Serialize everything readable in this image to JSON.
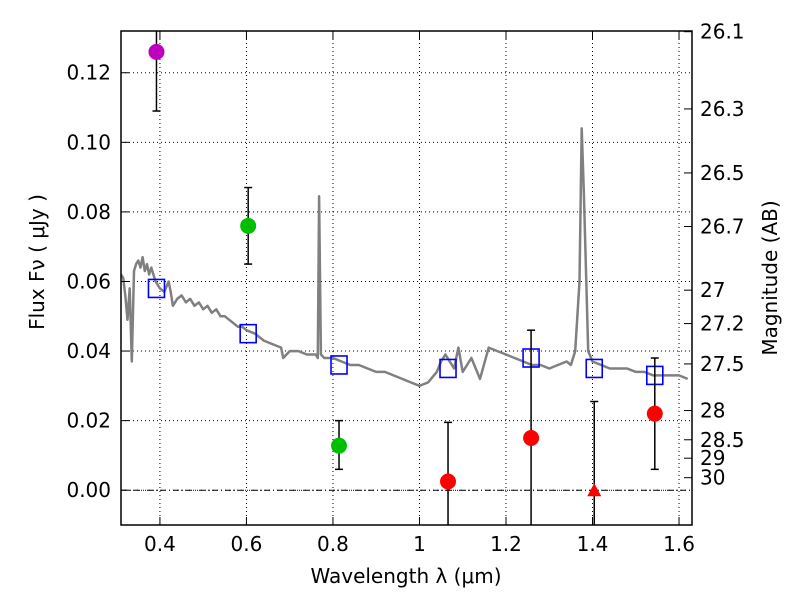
{
  "chart_data": {
    "type": "scatter",
    "title": "",
    "xlabel": "Wavelength  λ (μm)",
    "ylabel": "Flux  Fν  ( μJy )",
    "ylabel_right": "Magnitude (AB)",
    "xlim": [
      0.31,
      1.63
    ],
    "ylim": [
      -0.01,
      0.132
    ],
    "grid": true,
    "x_ticks": [
      0.4,
      0.6,
      0.8,
      1.0,
      1.2,
      1.4,
      1.6
    ],
    "x_tick_labels": [
      "0.4",
      "0.6",
      "0.8",
      "1",
      "1.2",
      "1.4",
      "1.6"
    ],
    "y_ticks": [
      0.0,
      0.02,
      0.04,
      0.06,
      0.08,
      0.1,
      0.12
    ],
    "y_tick_labels": [
      "0.00",
      "0.02",
      "0.04",
      "0.06",
      "0.08",
      "0.10",
      "0.12"
    ],
    "right_ticks": [
      {
        "flux": 0.1318,
        "label": "26.1"
      },
      {
        "flux": 0.1096,
        "label": "26.3"
      },
      {
        "flux": 0.0912,
        "label": "26.5"
      },
      {
        "flux": 0.0758,
        "label": "26.7"
      },
      {
        "flux": 0.0575,
        "label": "27"
      },
      {
        "flux": 0.0479,
        "label": "27.2"
      },
      {
        "flux": 0.0363,
        "label": "27.5"
      },
      {
        "flux": 0.0229,
        "label": "28"
      },
      {
        "flux": 0.0145,
        "label": "28.5"
      },
      {
        "flux": 0.0092,
        "label": "29"
      },
      {
        "flux": 0.0036,
        "label": "30"
      }
    ],
    "model_spectrum": {
      "name": "SED model",
      "color": "#808080",
      "points": [
        [
          0.31,
          0.062
        ],
        [
          0.315,
          0.061
        ],
        [
          0.32,
          0.056
        ],
        [
          0.325,
          0.049
        ],
        [
          0.33,
          0.058
        ],
        [
          0.335,
          0.037
        ],
        [
          0.34,
          0.063
        ],
        [
          0.345,
          0.065
        ],
        [
          0.35,
          0.066
        ],
        [
          0.355,
          0.064
        ],
        [
          0.36,
          0.067
        ],
        [
          0.365,
          0.063
        ],
        [
          0.37,
          0.065
        ],
        [
          0.375,
          0.062
        ],
        [
          0.38,
          0.064
        ],
        [
          0.385,
          0.062
        ],
        [
          0.39,
          0.06
        ],
        [
          0.4,
          0.058
        ],
        [
          0.41,
          0.057
        ],
        [
          0.42,
          0.06
        ],
        [
          0.425,
          0.057
        ],
        [
          0.43,
          0.053
        ],
        [
          0.44,
          0.055
        ],
        [
          0.45,
          0.056
        ],
        [
          0.46,
          0.054
        ],
        [
          0.47,
          0.055
        ],
        [
          0.48,
          0.053
        ],
        [
          0.49,
          0.054
        ],
        [
          0.5,
          0.052
        ],
        [
          0.51,
          0.053
        ],
        [
          0.52,
          0.051
        ],
        [
          0.53,
          0.052
        ],
        [
          0.54,
          0.05
        ],
        [
          0.55,
          0.05
        ],
        [
          0.56,
          0.049
        ],
        [
          0.57,
          0.048
        ],
        [
          0.58,
          0.047
        ],
        [
          0.59,
          0.047
        ],
        [
          0.6,
          0.046
        ],
        [
          0.62,
          0.045
        ],
        [
          0.64,
          0.043
        ],
        [
          0.66,
          0.042
        ],
        [
          0.68,
          0.041
        ],
        [
          0.685,
          0.038
        ],
        [
          0.7,
          0.04
        ],
        [
          0.72,
          0.04
        ],
        [
          0.74,
          0.039
        ],
        [
          0.76,
          0.039
        ],
        [
          0.765,
          0.038
        ],
        [
          0.768,
          0.0845
        ],
        [
          0.772,
          0.039
        ],
        [
          0.78,
          0.038
        ],
        [
          0.8,
          0.038
        ],
        [
          0.82,
          0.037
        ],
        [
          0.84,
          0.036
        ],
        [
          0.86,
          0.036
        ],
        [
          0.88,
          0.035
        ],
        [
          0.9,
          0.034
        ],
        [
          0.92,
          0.034
        ],
        [
          0.94,
          0.033
        ],
        [
          0.96,
          0.032
        ],
        [
          0.98,
          0.031
        ],
        [
          1.0,
          0.03
        ],
        [
          1.02,
          0.031
        ],
        [
          1.04,
          0.034
        ],
        [
          1.05,
          0.037
        ],
        [
          1.06,
          0.039
        ],
        [
          1.08,
          0.035
        ],
        [
          1.09,
          0.041
        ],
        [
          1.1,
          0.034
        ],
        [
          1.12,
          0.038
        ],
        [
          1.14,
          0.032
        ],
        [
          1.16,
          0.041
        ],
        [
          1.18,
          0.04
        ],
        [
          1.2,
          0.039
        ],
        [
          1.22,
          0.038
        ],
        [
          1.24,
          0.037
        ],
        [
          1.26,
          0.036
        ],
        [
          1.28,
          0.036
        ],
        [
          1.3,
          0.035
        ],
        [
          1.32,
          0.036
        ],
        [
          1.34,
          0.037
        ],
        [
          1.35,
          0.036
        ],
        [
          1.36,
          0.04
        ],
        [
          1.37,
          0.06
        ],
        [
          1.375,
          0.104
        ],
        [
          1.38,
          0.085
        ],
        [
          1.39,
          0.04
        ],
        [
          1.4,
          0.037
        ],
        [
          1.42,
          0.036
        ],
        [
          1.44,
          0.035
        ],
        [
          1.46,
          0.035
        ],
        [
          1.48,
          0.035
        ],
        [
          1.5,
          0.034
        ],
        [
          1.52,
          0.034
        ],
        [
          1.54,
          0.033
        ],
        [
          1.56,
          0.033
        ],
        [
          1.58,
          0.033
        ],
        [
          1.6,
          0.033
        ],
        [
          1.62,
          0.032
        ]
      ]
    },
    "model_photometry": {
      "name": "model bands",
      "color": "#0000ff",
      "points": [
        [
          0.392,
          0.058
        ],
        [
          0.604,
          0.045
        ],
        [
          0.814,
          0.036
        ],
        [
          1.066,
          0.035
        ],
        [
          1.258,
          0.038
        ],
        [
          1.404,
          0.035
        ],
        [
          1.544,
          0.033
        ]
      ]
    },
    "observed": [
      {
        "x": 0.392,
        "y": 0.126,
        "yerr_low": 0.109,
        "yerr_high": 0.135,
        "color": "#bf00bf",
        "marker": "circle"
      },
      {
        "x": 0.604,
        "y": 0.076,
        "yerr_low": 0.065,
        "yerr_high": 0.087,
        "color": "#00bf00",
        "marker": "circle"
      },
      {
        "x": 0.814,
        "y": 0.0128,
        "yerr_low": 0.006,
        "yerr_high": 0.02,
        "color": "#00bf00",
        "marker": "circle"
      },
      {
        "x": 1.066,
        "y": 0.0025,
        "yerr_low": -0.012,
        "yerr_high": 0.0195,
        "color": "#ff0000",
        "marker": "circle"
      },
      {
        "x": 1.258,
        "y": 0.015,
        "yerr_low": -0.012,
        "yerr_high": 0.046,
        "color": "#ff0000",
        "marker": "circle"
      },
      {
        "x": 1.404,
        "y": 0.0,
        "yerr_low": -0.012,
        "yerr_high": 0.0255,
        "color": "#ff0000",
        "marker": "triangle"
      },
      {
        "x": 1.544,
        "y": 0.022,
        "yerr_low": 0.006,
        "yerr_high": 0.038,
        "color": "#ff0000",
        "marker": "circle"
      }
    ]
  }
}
